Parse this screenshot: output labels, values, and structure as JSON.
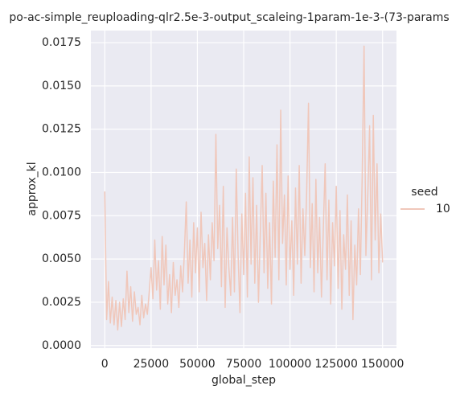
{
  "chart_data": {
    "type": "line",
    "title": "po-ac-simple_reuploading-qlr2.5e-3-output_scaleing-1param-1e-3-(73-params",
    "xlabel": "global_step",
    "ylabel": "approx_kl",
    "legend_title": "seed",
    "legend": "right",
    "grid": true,
    "background": "#eaeaf2",
    "xlim": [
      -7500,
      157500
    ],
    "ylim": [
      -0.00015,
      0.0182
    ],
    "xticks": [
      0,
      25000,
      50000,
      75000,
      100000,
      125000,
      150000
    ],
    "yticks": [
      {
        "value": 0,
        "label": "0.0000"
      },
      {
        "value": 0.0025,
        "label": "0.0025"
      },
      {
        "value": 0.005,
        "label": "0.0050"
      },
      {
        "value": 0.0075,
        "label": "0.0075"
      },
      {
        "value": 0.01,
        "label": "0.0100"
      },
      {
        "value": 0.0125,
        "label": "0.0125"
      },
      {
        "value": 0.015,
        "label": "0.0150"
      },
      {
        "value": 0.0175,
        "label": "0.0175"
      }
    ],
    "x": [
      0,
      1000,
      2000,
      3000,
      4000,
      5000,
      6000,
      7000,
      8000,
      9000,
      10000,
      11000,
      12000,
      13000,
      14000,
      15000,
      16000,
      17000,
      18000,
      19000,
      20000,
      21000,
      22000,
      23000,
      24000,
      25000,
      26000,
      27000,
      28000,
      29000,
      30000,
      31000,
      32000,
      33000,
      34000,
      35000,
      36000,
      37000,
      38000,
      39000,
      40000,
      41000,
      42000,
      43000,
      44000,
      45000,
      46000,
      47000,
      48000,
      49000,
      50000,
      51000,
      52000,
      53000,
      54000,
      55000,
      56000,
      57000,
      58000,
      59000,
      60000,
      61000,
      62000,
      63000,
      64000,
      65000,
      66000,
      67000,
      68000,
      69000,
      70000,
      71000,
      72000,
      73000,
      74000,
      75000,
      76000,
      77000,
      78000,
      79000,
      80000,
      81000,
      82000,
      83000,
      84000,
      85000,
      86000,
      87000,
      88000,
      89000,
      90000,
      91000,
      92000,
      93000,
      94000,
      95000,
      96000,
      97000,
      98000,
      99000,
      100000,
      101000,
      102000,
      103000,
      104000,
      105000,
      106000,
      107000,
      108000,
      109000,
      110000,
      111000,
      112000,
      113000,
      114000,
      115000,
      116000,
      117000,
      118000,
      119000,
      120000,
      121000,
      122000,
      123000,
      124000,
      125000,
      126000,
      127000,
      128000,
      129000,
      130000,
      131000,
      132000,
      133000,
      134000,
      135000,
      136000,
      137000,
      138000,
      139000,
      140000,
      141000,
      142000,
      143000,
      144000,
      145000,
      146000,
      147000,
      148000,
      149000,
      150000
    ],
    "series": [
      {
        "name": "10",
        "color": "#f0c7ba",
        "values": [
          0.0089,
          0.0015,
          0.0037,
          0.0013,
          0.0028,
          0.0012,
          0.0026,
          0.0009,
          0.0025,
          0.0011,
          0.0027,
          0.0015,
          0.0043,
          0.0019,
          0.0034,
          0.0014,
          0.0031,
          0.0018,
          0.0022,
          0.0012,
          0.0029,
          0.0016,
          0.0024,
          0.0018,
          0.0031,
          0.0045,
          0.0027,
          0.0061,
          0.0032,
          0.0049,
          0.0021,
          0.0063,
          0.0035,
          0.0058,
          0.0024,
          0.0041,
          0.0019,
          0.0048,
          0.0029,
          0.0038,
          0.0022,
          0.0046,
          0.0031,
          0.0054,
          0.0083,
          0.0036,
          0.0061,
          0.0028,
          0.0071,
          0.0042,
          0.0068,
          0.0031,
          0.0077,
          0.0045,
          0.0059,
          0.0026,
          0.0064,
          0.0038,
          0.0071,
          0.0049,
          0.0122,
          0.0056,
          0.0081,
          0.0034,
          0.0092,
          0.0022,
          0.0068,
          0.0045,
          0.0029,
          0.0074,
          0.0031,
          0.0102,
          0.0052,
          0.0019,
          0.0076,
          0.0041,
          0.0088,
          0.0028,
          0.0109,
          0.0047,
          0.0097,
          0.0036,
          0.0081,
          0.0025,
          0.0066,
          0.0104,
          0.0042,
          0.0088,
          0.0033,
          0.0071,
          0.0024,
          0.0095,
          0.0051,
          0.0116,
          0.0038,
          0.0136,
          0.0059,
          0.0087,
          0.0035,
          0.0098,
          0.0044,
          0.0072,
          0.0029,
          0.0091,
          0.0047,
          0.0104,
          0.0036,
          0.0079,
          0.0052,
          0.0088,
          0.014,
          0.0045,
          0.0082,
          0.0031,
          0.0096,
          0.0042,
          0.0074,
          0.0028,
          0.0067,
          0.0105,
          0.0038,
          0.0084,
          0.0024,
          0.0071,
          0.0046,
          0.0092,
          0.0033,
          0.0078,
          0.0021,
          0.0064,
          0.0044,
          0.0087,
          0.0029,
          0.0072,
          0.0015,
          0.0058,
          0.0035,
          0.0079,
          0.0041,
          0.0098,
          0.0173,
          0.0052,
          0.0086,
          0.0127,
          0.0038,
          0.0133,
          0.0061,
          0.0105,
          0.0042,
          0.0076,
          0.0048
        ]
      }
    ]
  }
}
